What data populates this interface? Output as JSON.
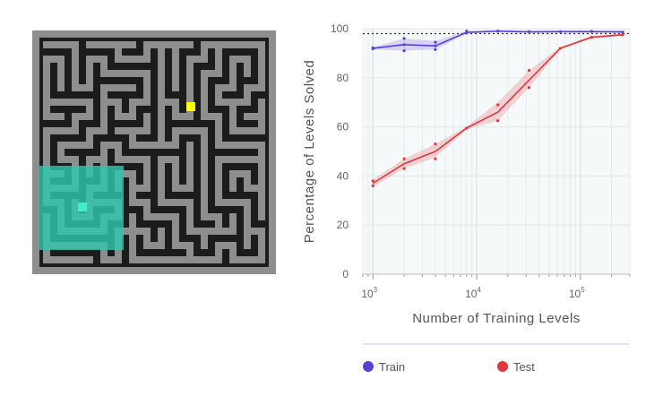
{
  "maze": {
    "description_icon": "maze-illustration",
    "colors": {
      "wall": "#1c1c1c",
      "path": "#8e8e8e",
      "border": "#8e8e8e",
      "visible": "#2fc6ad",
      "agent": "#3ef0c8",
      "goal": "#ffff00"
    }
  },
  "chart_data": {
    "type": "line",
    "xlabel": "Number of Training Levels",
    "ylabel": "Percentage of Levels Solved",
    "xscale": "log",
    "xlim": [
      800,
      300000
    ],
    "ylim": [
      0,
      100
    ],
    "x_ticks": [
      {
        "value": 1000,
        "base": "10",
        "exp": "3"
      },
      {
        "value": 10000,
        "base": "10",
        "exp": "4"
      },
      {
        "value": 100000,
        "base": "10",
        "exp": "5"
      }
    ],
    "y_ticks": [
      0,
      20,
      40,
      60,
      80,
      100
    ],
    "reference_line": 98,
    "x": [
      1000,
      2000,
      4000,
      8000,
      16000,
      32000,
      64000,
      128000,
      256000
    ],
    "series": [
      {
        "name": "Train",
        "color": "#5b3fd6",
        "values": [
          92,
          93.5,
          93,
          98.5,
          99,
          98.7,
          98.8,
          98.8,
          98.7
        ],
        "lower": [
          91.5,
          91,
          91.5,
          98,
          98.6,
          98.3,
          98.4,
          98.4,
          98.3
        ],
        "upper": [
          92.5,
          96,
          95,
          99,
          99.4,
          99.1,
          99.2,
          99.2,
          99.1
        ],
        "points": [
          [
            1000,
            91.8
          ],
          [
            1000,
            92.2
          ],
          [
            2000,
            91
          ],
          [
            2000,
            93.5
          ],
          [
            2000,
            96
          ],
          [
            4000,
            91.5
          ],
          [
            4000,
            93
          ],
          [
            4000,
            94.5
          ],
          [
            8000,
            98.2
          ],
          [
            8000,
            99
          ],
          [
            16000,
            99
          ],
          [
            32000,
            98.8
          ],
          [
            64000,
            98.8
          ],
          [
            128000,
            98.9
          ],
          [
            256000,
            98.6
          ]
        ]
      },
      {
        "name": "Test",
        "color": "#e0383e",
        "values": [
          37,
          45,
          50,
          59.5,
          66,
          79,
          92,
          96.5,
          97.5
        ],
        "lower": [
          35.5,
          43,
          47.5,
          59,
          62.5,
          76,
          91.5,
          96,
          97
        ],
        "upper": [
          38.5,
          47,
          53,
          60,
          70,
          83,
          92.5,
          97,
          98
        ],
        "points": [
          [
            1000,
            36
          ],
          [
            1000,
            38
          ],
          [
            2000,
            43
          ],
          [
            2000,
            47
          ],
          [
            4000,
            47
          ],
          [
            4000,
            53
          ],
          [
            8000,
            59.5
          ],
          [
            16000,
            62.5
          ],
          [
            16000,
            69
          ],
          [
            32000,
            76
          ],
          [
            32000,
            83
          ],
          [
            64000,
            92
          ],
          [
            128000,
            96.5
          ],
          [
            256000,
            97.5
          ]
        ]
      }
    ],
    "legend_position": "bottom",
    "grid": true
  }
}
